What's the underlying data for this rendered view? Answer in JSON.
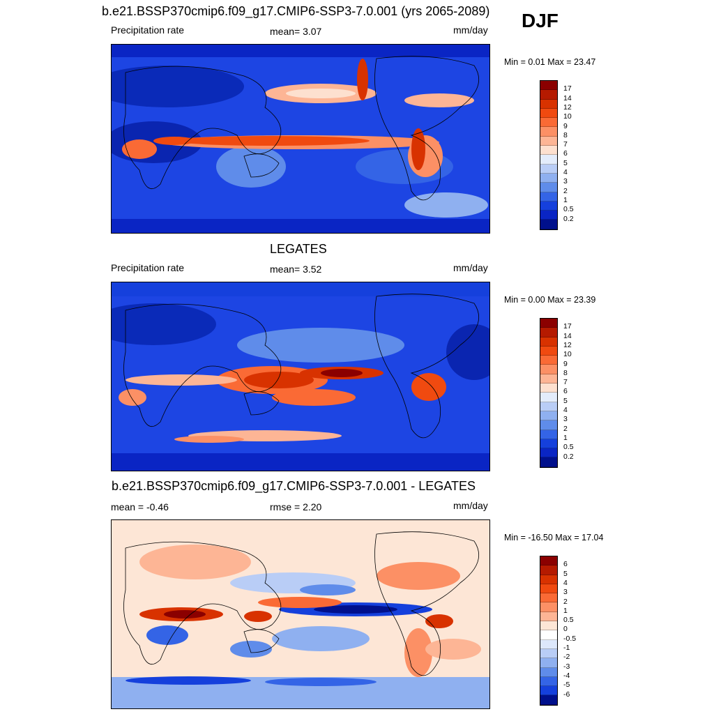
{
  "season": "DJF",
  "panels": [
    {
      "title": "b.e21.BSSP370cmip6.f09_g17.CMIP6-SSP3-7.0.001 (yrs 2065-2089)",
      "left": "Precipitation rate",
      "mid": "mean=   3.07",
      "right": "mm/day",
      "minmax": "Min =   0.01 Max =  23.47"
    },
    {
      "title": "LEGATES",
      "left": "Precipitation rate",
      "mid": "mean=   3.52",
      "right": "mm/day",
      "minmax": "Min =   0.00 Max =  23.39"
    },
    {
      "title": "b.e21.BSSP370cmip6.f09_g17.CMIP6-SSP3-7.0.001 - LEGATES",
      "left": "mean =  -0.46",
      "mid": "rmse =   2.20",
      "right": "mm/day",
      "minmax": "Min = -16.50 Max =  17.04"
    }
  ],
  "precip_colorbar": {
    "labels": [
      "17",
      "14",
      "12",
      "10",
      "9",
      "8",
      "7",
      "6",
      "5",
      "4",
      "3",
      "2",
      "1",
      "0.5",
      "0.2"
    ],
    "colors": [
      "#8b0000",
      "#b51a00",
      "#d83200",
      "#f04a10",
      "#fa6a35",
      "#fc9065",
      "#fdb595",
      "#fde0cf",
      "#e3ecfb",
      "#b9cdf6",
      "#8fb0f0",
      "#5f8cea",
      "#3464e6",
      "#1540dc",
      "#0a25c4",
      "#00108c"
    ]
  },
  "diff_colorbar": {
    "labels": [
      "6",
      "5",
      "4",
      "3",
      "2",
      "1",
      "0.5",
      "0",
      "-0.5",
      "-1",
      "-2",
      "-3",
      "-4",
      "-5",
      "-6"
    ],
    "colors": [
      "#8b0000",
      "#b51a00",
      "#d83200",
      "#f04a10",
      "#fa6a35",
      "#fc9065",
      "#fdb595",
      "#fde6d6",
      "#ffffff",
      "#dde8fb",
      "#b9cdf6",
      "#8fb0f0",
      "#5f8cea",
      "#3464e6",
      "#1540dc",
      "#00108c"
    ]
  }
}
